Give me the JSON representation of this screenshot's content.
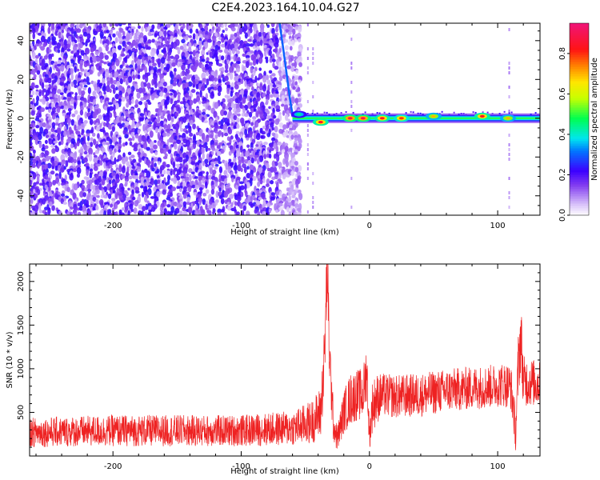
{
  "figure": {
    "title": "C2E4.2023.164.10.04.G27"
  },
  "chart_data": [
    {
      "type": "heatmap",
      "xlabel": "Height of straight line (km)",
      "ylabel": "Frequency (Hz)",
      "xlim": [
        -265,
        133
      ],
      "ylim": [
        -50,
        49
      ],
      "xticks": [
        -200,
        -100,
        0,
        100
      ],
      "yticks": [
        -40,
        -20,
        0,
        20,
        40
      ],
      "regions": [
        {
          "name": "noise",
          "x_range": [
            -265,
            -55
          ],
          "freq_range": [
            -50,
            49
          ],
          "amplitude": 0.2
        },
        {
          "name": "sweep-curve",
          "x": [
            -70,
            -66,
            -62,
            -60,
            -58
          ],
          "freq": [
            49,
            30,
            10,
            2,
            0
          ],
          "amplitude": 0.3
        },
        {
          "name": "carrier",
          "x_range": [
            -60,
            133
          ],
          "freq": 0,
          "amplitude": 0.45
        }
      ],
      "hotspots": [
        {
          "x": -55,
          "freq": 2,
          "amplitude": 0.45
        },
        {
          "x": -38,
          "freq": -2,
          "amplitude": 0.85
        },
        {
          "x": -15,
          "freq": 0,
          "amplitude": 0.9
        },
        {
          "x": -5,
          "freq": 0,
          "amplitude": 0.9
        },
        {
          "x": 10,
          "freq": 0,
          "amplitude": 0.85
        },
        {
          "x": 25,
          "freq": 0,
          "amplitude": 0.8
        },
        {
          "x": 50,
          "freq": 1,
          "amplitude": 0.7
        },
        {
          "x": 88,
          "freq": 1,
          "amplitude": 0.85
        },
        {
          "x": 108,
          "freq": 0,
          "amplitude": 0.7
        }
      ]
    },
    {
      "type": "colorbar",
      "label": "Normalized spectral amplitude",
      "range": [
        0,
        0.95
      ],
      "ticks": [
        "0.0",
        "0.2",
        "0.4",
        "0.6",
        "0.8"
      ]
    },
    {
      "type": "line",
      "xlabel": "Height of straight line (km)",
      "ylabel": "SNR (10 * v/v)",
      "xlim": [
        -265,
        133
      ],
      "ylim": [
        0,
        2200
      ],
      "xticks": [
        -200,
        -100,
        0,
        100
      ],
      "yticks": [
        500,
        1000,
        1500,
        2000
      ],
      "series": [
        {
          "color": "#ee2222",
          "x": [
            -265,
            -200,
            -150,
            -100,
            -60,
            -45,
            -38,
            -35,
            -33,
            -31,
            -28,
            -25,
            -20,
            -15,
            -10,
            -5,
            -2,
            0,
            2,
            5,
            10,
            20,
            40,
            60,
            80,
            95,
            100,
            105,
            110,
            112,
            114,
            116,
            118,
            120,
            125,
            133
          ],
          "y": [
            270,
            290,
            290,
            290,
            320,
            390,
            500,
            1150,
            2150,
            1100,
            350,
            200,
            500,
            650,
            700,
            700,
            1000,
            200,
            550,
            650,
            700,
            680,
            700,
            750,
            780,
            800,
            810,
            820,
            800,
            600,
            250,
            1000,
            1400,
            850,
            850,
            820
          ],
          "noise": [
            170,
            180,
            180,
            180,
            200,
            250,
            300,
            400,
            500,
            400,
            200,
            150,
            250,
            300,
            300,
            300,
            350,
            150,
            300,
            300,
            250,
            250,
            250,
            250,
            250,
            250,
            250,
            260,
            260,
            300,
            200,
            400,
            450,
            300,
            280,
            260
          ]
        }
      ]
    }
  ]
}
